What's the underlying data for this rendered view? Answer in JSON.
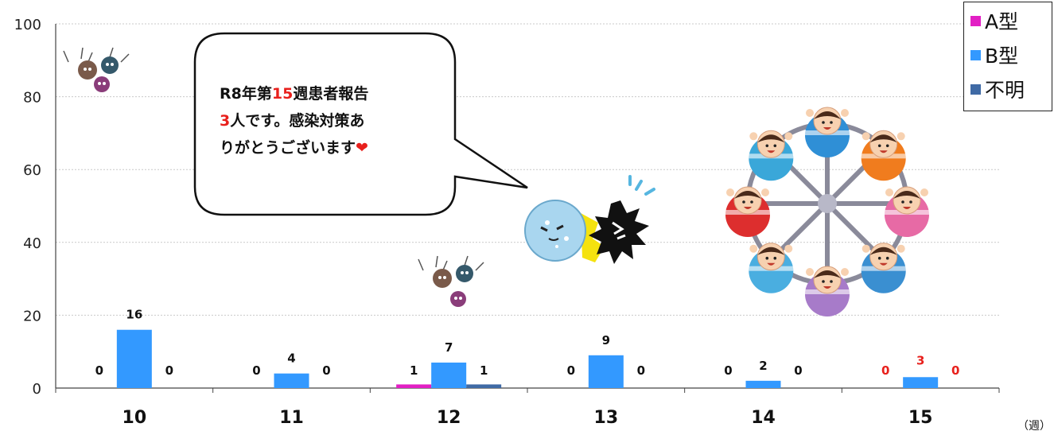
{
  "chart_data": {
    "type": "bar",
    "categories": [
      "10",
      "11",
      "12",
      "13",
      "14",
      "15"
    ],
    "series": [
      {
        "name": "A型",
        "color": "#e21fc4",
        "values": [
          0,
          0,
          1,
          0,
          0,
          0
        ]
      },
      {
        "name": "B型",
        "color": "#3399ff",
        "values": [
          16,
          4,
          7,
          9,
          2,
          3
        ]
      },
      {
        "name": "不明",
        "color": "#3f6aa5",
        "values": [
          0,
          0,
          1,
          0,
          0,
          0
        ]
      }
    ],
    "ylim": [
      0,
      100
    ],
    "yticks": [
      "0",
      "20",
      "40",
      "60",
      "80",
      "100"
    ],
    "xlabel": "（週）",
    "ylabel": "",
    "grid": true,
    "legend": "top-right",
    "highlight_category": "15",
    "highlight_color": "#e8201c"
  },
  "speech_bubble": {
    "line1_pre": "R8年第",
    "line1_num": "15",
    "line1_post": "週患者報告",
    "line2_num": "3",
    "line2_post": "人です。感染対策あ",
    "line3": "りがとうございます",
    "heart": "❤"
  },
  "illustrations": {
    "germs_1": "virus-germs-icon",
    "germs_2": "virus-germs-icon",
    "fight": "immunity-fighting-virus-icon",
    "wheel": "ferris-wheel-children-icon"
  }
}
